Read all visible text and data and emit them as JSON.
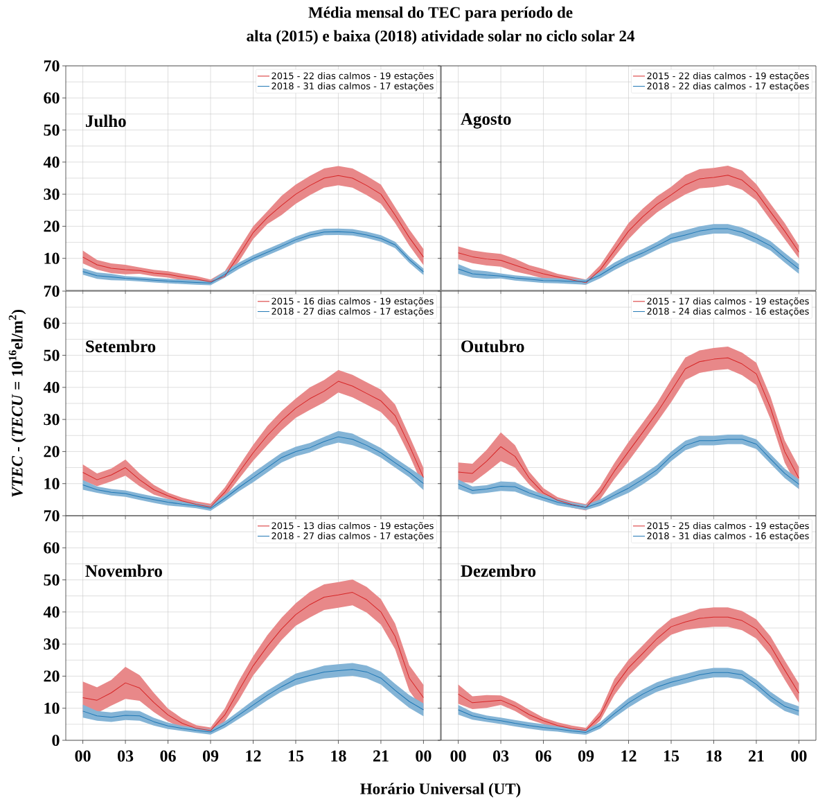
{
  "chart_data": [
    {
      "type": "line",
      "title": "Média mensal do TEC para período de",
      "subtitle": "alta (2015) e baixa (2018) atividade solar no ciclo solar 24",
      "x": [
        0,
        1,
        2,
        3,
        4,
        5,
        6,
        7,
        8,
        9,
        10,
        11,
        12,
        13,
        14,
        15,
        16,
        17,
        18,
        19,
        20,
        21,
        22,
        23,
        24
      ],
      "xlim": [
        -1.2,
        25.2
      ],
      "xticks": [
        0,
        3,
        6,
        9,
        12,
        15,
        18,
        21,
        24
      ],
      "ylim": [
        0,
        70
      ],
      "yticks": [
        10,
        20,
        30,
        40,
        50,
        60,
        70
      ],
      "tick_labels": "y",
      "grid": true,
      "legend": "top right",
      "annotations": [
        "Julho"
      ],
      "series": [
        {
          "name": "2015 - 22 dias calmos - 19 estações",
          "color": "#d62728",
          "values": [
            10.4,
            8,
            6.9,
            6.5,
            6.2,
            5.4,
            5,
            4.2,
            3.5,
            2.7,
            4.4,
            11,
            18,
            22.7,
            26.5,
            30,
            32.7,
            35,
            35.8,
            35,
            32.7,
            30,
            23.5,
            16.5,
            10.4
          ],
          "lower": [
            8.4,
            6.5,
            5.4,
            5,
            5.2,
            4.4,
            4,
            3.2,
            2.5,
            2,
            4,
            9,
            16,
            20.7,
            23.5,
            27,
            29.7,
            32,
            32.8,
            32,
            29.7,
            27,
            21,
            14,
            7.9
          ],
          "upper": [
            12.4,
            9.5,
            8.4,
            8,
            7.2,
            6.4,
            6,
            5.2,
            4.5,
            3.4,
            6,
            13,
            20,
            24.7,
            29.5,
            33,
            35.7,
            38,
            38.8,
            38,
            35.7,
            33,
            26,
            19,
            12.9
          ]
        },
        {
          "name": "2018 - 31 dias calmos - 17 estações",
          "color": "#1f77b4",
          "values": [
            5.9,
            4.6,
            4.2,
            3.8,
            3.5,
            3.2,
            2.9,
            2.7,
            2.5,
            2.3,
            5,
            7.7,
            10,
            11.9,
            13.8,
            15.8,
            17.3,
            18.2,
            18.3,
            18.1,
            17.3,
            16.2,
            14.2,
            9.6,
            5.8
          ],
          "lower": [
            4.9,
            3.6,
            3.2,
            3.1,
            2.8,
            2.5,
            2.2,
            2,
            1.8,
            1.6,
            4,
            6.7,
            9,
            10.9,
            12.8,
            14.8,
            16.3,
            17.2,
            17.3,
            17.1,
            16.3,
            15.2,
            13.2,
            8.6,
            4.8
          ],
          "upper": [
            6.9,
            5.6,
            5.2,
            4.5,
            4.2,
            3.9,
            3.6,
            3.4,
            3.2,
            3,
            6,
            8.7,
            11,
            12.9,
            14.8,
            16.8,
            18.3,
            19.2,
            19.3,
            19.1,
            18.3,
            17.2,
            15.2,
            10.6,
            6.8
          ]
        }
      ]
    },
    {
      "type": "line",
      "x": [
        0,
        1,
        2,
        3,
        4,
        5,
        6,
        7,
        8,
        9,
        10,
        11,
        12,
        13,
        14,
        15,
        16,
        17,
        18,
        19,
        20,
        21,
        22,
        23,
        24
      ],
      "xlim": [
        -1.2,
        25.2
      ],
      "xticks": [
        0,
        3,
        6,
        9,
        12,
        15,
        18,
        21,
        24
      ],
      "ylim": [
        0,
        70
      ],
      "yticks": [
        10,
        20,
        30,
        40,
        50,
        60,
        70
      ],
      "tick_labels": false,
      "grid": true,
      "legend": "top right",
      "annotations": [
        "Agosto"
      ],
      "series": [
        {
          "name": "2015 - 22 dias calmos - 19 estações",
          "color": "#d62728",
          "values": [
            11.7,
            10.5,
            9.8,
            9.4,
            7.9,
            6.4,
            5.2,
            4.2,
            3.3,
            2.4,
            6.4,
            12.4,
            18.5,
            23,
            26.8,
            29.8,
            32.9,
            34.8,
            35.2,
            35.9,
            34.4,
            30.6,
            24.5,
            18.5,
            12
          ],
          "lower": [
            9.7,
            8.5,
            7.8,
            7.4,
            5.9,
            4.9,
            3.7,
            3.2,
            2.3,
            1.8,
            4.9,
            10.4,
            16,
            20.5,
            24.3,
            27.3,
            29.9,
            31.8,
            32.2,
            32.9,
            31.4,
            28.1,
            22,
            16,
            10
          ],
          "upper": [
            13.7,
            12.5,
            11.8,
            11.4,
            9.9,
            7.9,
            6.7,
            5.2,
            4.3,
            3.4,
            7.9,
            14.4,
            21,
            25.5,
            29.3,
            32.3,
            35.9,
            37.8,
            38.2,
            38.9,
            37.4,
            33.1,
            27,
            21,
            14
          ]
        },
        {
          "name": "2018 - 22 dias calmos - 17 estações",
          "color": "#1f77b4",
          "values": [
            6.7,
            5.2,
            4.8,
            4.5,
            3.9,
            3.5,
            3.1,
            3,
            2.8,
            2.8,
            4.8,
            7.5,
            9.8,
            11.7,
            13.9,
            16.2,
            17.3,
            18.5,
            19.2,
            19.2,
            18.1,
            16.2,
            13.9,
            10.2,
            6.7
          ],
          "lower": [
            5.2,
            4,
            3.6,
            3.7,
            3.1,
            2.7,
            2.3,
            2.2,
            2,
            1.8,
            3.8,
            6.3,
            8.6,
            10.5,
            12.7,
            14.7,
            15.8,
            17,
            17.7,
            17.7,
            16.6,
            14.7,
            12.4,
            8.7,
            5.2
          ],
          "upper": [
            8.2,
            6.4,
            6,
            5.3,
            4.7,
            4.3,
            3.9,
            3.8,
            3.6,
            3.4,
            5.8,
            8.7,
            11,
            12.9,
            15.1,
            17.7,
            18.8,
            20,
            20.7,
            20.7,
            19.6,
            17.7,
            15.4,
            11.7,
            8.2
          ]
        }
      ]
    },
    {
      "type": "line",
      "ylabel": "*VTEC* - (*TECU* = 10$^{16}$el/m$^{2}$)",
      "x": [
        0,
        1,
        2,
        3,
        4,
        5,
        6,
        7,
        8,
        9,
        10,
        11,
        12,
        13,
        14,
        15,
        16,
        17,
        18,
        19,
        20,
        21,
        22,
        23,
        24
      ],
      "xlim": [
        -1.2,
        25.2
      ],
      "xticks": [
        0,
        3,
        6,
        9,
        12,
        15,
        18,
        21,
        24
      ],
      "ylim": [
        0,
        70
      ],
      "yticks": [
        10,
        20,
        30,
        40,
        50,
        60,
        70
      ],
      "tick_labels": "y",
      "grid": true,
      "legend": "top right",
      "annotations": [
        "Setembro"
      ],
      "series": [
        {
          "name": "2015 - 16 dias calmos - 19 estações",
          "color": "#d62728",
          "values": [
            13.5,
            11.2,
            12.7,
            15,
            11.2,
            8.1,
            6.2,
            4.6,
            3.5,
            2.7,
            7.3,
            13.5,
            19.6,
            25,
            29.6,
            33.5,
            36.5,
            38.8,
            41.9,
            40.4,
            38.1,
            35.8,
            31.2,
            21.9,
            11.9
          ],
          "lower": [
            11,
            9.2,
            10.7,
            12.5,
            9.2,
            6.6,
            5.2,
            3.6,
            2.5,
            1.7,
            5.8,
            11.5,
            17.1,
            22,
            26.6,
            30.5,
            33,
            35.3,
            38.4,
            36.9,
            34.6,
            32.3,
            27.7,
            18.9,
            8.9
          ],
          "upper": [
            16,
            13.2,
            14.7,
            17.5,
            13.2,
            9.6,
            7.2,
            5.6,
            4.5,
            3.7,
            8.8,
            15.5,
            22.1,
            28,
            32.6,
            36.5,
            40,
            42.3,
            45.4,
            43.9,
            41.6,
            39.3,
            34.7,
            24.9,
            14.9
          ]
        },
        {
          "name": "2018 - 27 dias calmos - 17 estações",
          "color": "#1f77b4",
          "values": [
            9.6,
            8.1,
            7.3,
            6.9,
            5.9,
            5,
            4.2,
            3.6,
            3.1,
            2.3,
            5.4,
            8.8,
            11.9,
            15,
            18.1,
            20,
            21.2,
            23.1,
            24.6,
            23.8,
            21.9,
            19.6,
            16.5,
            13.5,
            10
          ],
          "lower": [
            8.1,
            7.1,
            6.3,
            5.9,
            4.9,
            4,
            3.2,
            2.8,
            2.3,
            1.5,
            4.4,
            7.6,
            10.4,
            13.5,
            16.6,
            18.5,
            19.7,
            21.6,
            22.8,
            22,
            20.4,
            18.1,
            15,
            12,
            8
          ],
          "upper": [
            11.1,
            9.1,
            8.3,
            7.9,
            6.9,
            6,
            5.2,
            4.4,
            3.9,
            3.1,
            6.4,
            10,
            13.4,
            16.5,
            19.6,
            21.5,
            22.7,
            24.6,
            26.4,
            25.6,
            23.4,
            21.1,
            18,
            15,
            12
          ]
        }
      ]
    },
    {
      "type": "line",
      "x": [
        0,
        1,
        2,
        3,
        4,
        5,
        6,
        7,
        8,
        9,
        10,
        11,
        12,
        13,
        14,
        15,
        16,
        17,
        18,
        19,
        20,
        21,
        22,
        23,
        24
      ],
      "xlim": [
        -1.2,
        25.2
      ],
      "xticks": [
        0,
        3,
        6,
        9,
        12,
        15,
        18,
        21,
        24
      ],
      "ylim": [
        0,
        70
      ],
      "yticks": [
        10,
        20,
        30,
        40,
        50,
        60,
        70
      ],
      "tick_labels": false,
      "grid": true,
      "legend": "top right",
      "annotations": [
        "Outubro"
      ],
      "series": [
        {
          "name": "2015 - 17 dias calmos - 19 estações",
          "color": "#d62728",
          "values": [
            13.6,
            13.2,
            17,
            21.5,
            18.5,
            11.7,
            7.1,
            4.8,
            3.5,
            2.6,
            7.1,
            13.9,
            20,
            26,
            32.1,
            38.9,
            45.8,
            48,
            48.8,
            49.2,
            47.3,
            44.2,
            33.6,
            20,
            11.7
          ],
          "lower": [
            10.6,
            10.2,
            13.5,
            17,
            15,
            9.7,
            5.6,
            3.8,
            2.5,
            1.6,
            5.1,
            11.4,
            17,
            23,
            29.1,
            35.4,
            42.3,
            44.5,
            45.3,
            45.7,
            43.8,
            40.7,
            30.1,
            16.5,
            8.2
          ],
          "upper": [
            16.6,
            16.2,
            20.5,
            26,
            22,
            13.7,
            8.6,
            5.8,
            4.5,
            3.6,
            9.1,
            16.4,
            23,
            29,
            35.1,
            42.4,
            49.3,
            51.5,
            52.3,
            52.7,
            50.8,
            47.7,
            37.1,
            23.5,
            15.2
          ]
        },
        {
          "name": "2018 - 24 dias calmos - 16 estações",
          "color": "#1f77b4",
          "values": [
            9.8,
            7.9,
            8.3,
            9.2,
            9,
            7.1,
            5.6,
            4.2,
            3.3,
            2.6,
            4.1,
            6.4,
            8.6,
            11.3,
            14.3,
            18.5,
            21.9,
            23.4,
            23.4,
            23.8,
            23.8,
            22.3,
            17.7,
            13.2,
            9.8
          ],
          "lower": [
            8.3,
            6.7,
            7.1,
            7.7,
            7.5,
            5.9,
            4.6,
            3.2,
            2.5,
            1.8,
            3.1,
            5.2,
            7.1,
            9.8,
            12.8,
            17,
            20.4,
            21.9,
            21.9,
            22.3,
            22.3,
            20.8,
            16.2,
            11.7,
            8.3
          ],
          "upper": [
            11.3,
            9.1,
            9.5,
            10.7,
            10.5,
            8.3,
            6.6,
            5.2,
            4.1,
            3.4,
            5.1,
            7.6,
            10.1,
            12.8,
            15.8,
            20,
            23.4,
            24.9,
            24.9,
            25.3,
            25.3,
            23.8,
            19.2,
            14.7,
            11.3
          ]
        }
      ]
    },
    {
      "type": "line",
      "xlabel": "Horário Universal (UT)",
      "x": [
        0,
        1,
        2,
        3,
        4,
        5,
        6,
        7,
        8,
        9,
        10,
        11,
        12,
        13,
        14,
        15,
        16,
        17,
        18,
        19,
        20,
        21,
        22,
        23,
        24
      ],
      "xlim": [
        -1.2,
        25.2
      ],
      "xticks": [
        {
          "value": 0,
          "label": "00"
        },
        {
          "value": 3,
          "label": "03"
        },
        {
          "value": 6,
          "label": "06"
        },
        {
          "value": 9,
          "label": "09"
        },
        12,
        15,
        18,
        21,
        {
          "value": 24,
          "label": "00"
        }
      ],
      "ylim": [
        0,
        70
      ],
      "yticks": [
        0,
        10,
        20,
        30,
        40,
        50,
        60,
        70
      ],
      "grid": true,
      "legend": "top right",
      "annotations": [
        "Novembro"
      ],
      "series": [
        {
          "name": "2015 - 13 dias calmos - 19 estações",
          "color": "#d62728",
          "values": [
            13.3,
            12.5,
            14.8,
            17.9,
            16.3,
            11.8,
            7.9,
            5.3,
            3.7,
            3,
            7.9,
            15.6,
            23.2,
            29.3,
            34.7,
            39.2,
            42.3,
            44.6,
            45.3,
            46.1,
            43.8,
            40,
            32.4,
            19.4,
            13.3
          ],
          "lower": [
            8.3,
            8.5,
            10.8,
            12.9,
            12.3,
            8.8,
            5.9,
            3.8,
            2.7,
            2,
            5.9,
            12.6,
            20.2,
            25.8,
            31.2,
            35.7,
            38.3,
            40.6,
            41.3,
            42.1,
            39.8,
            36,
            28.4,
            15.4,
            9.3
          ],
          "upper": [
            18.3,
            16.5,
            18.8,
            22.9,
            20.3,
            14.8,
            9.9,
            6.8,
            4.7,
            4,
            9.9,
            18.6,
            26.2,
            32.8,
            38.2,
            42.7,
            46.3,
            48.6,
            49.3,
            50.1,
            47.8,
            44,
            36.4,
            23.4,
            17.3
          ]
        },
        {
          "name": "2018 - 27 dias calmos - 17 estações",
          "color": "#1f77b4",
          "values": [
            9.1,
            7.6,
            7.2,
            7.8,
            7.6,
            5.8,
            4.5,
            3.7,
            3.1,
            2.6,
            4.9,
            7.9,
            11,
            14,
            16.7,
            19,
            20.2,
            21.3,
            21.7,
            22.1,
            21.3,
            19.4,
            15.6,
            12.1,
            9.5
          ],
          "lower": [
            7.1,
            6.1,
            5.7,
            6.3,
            6.1,
            4.6,
            3.5,
            2.9,
            2.3,
            1.8,
            3.9,
            6.7,
            9.5,
            12.5,
            15.2,
            17.2,
            18.4,
            19.3,
            19.7,
            20.1,
            19.3,
            17.4,
            13.6,
            10.1,
            7.5
          ],
          "upper": [
            11.1,
            9.1,
            8.7,
            9.3,
            9.1,
            7,
            5.5,
            4.5,
            3.9,
            3.4,
            5.9,
            9.1,
            12.5,
            15.5,
            18.2,
            20.8,
            22,
            23.3,
            23.7,
            24.1,
            23.3,
            21.4,
            17.6,
            14.1,
            11.5
          ]
        }
      ]
    },
    {
      "type": "line",
      "x": [
        0,
        1,
        2,
        3,
        4,
        5,
        6,
        7,
        8,
        9,
        10,
        11,
        12,
        13,
        14,
        15,
        16,
        17,
        18,
        19,
        20,
        21,
        22,
        23,
        24
      ],
      "xlim": [
        -1.2,
        25.2
      ],
      "xticks": [
        {
          "value": 0,
          "label": "00"
        },
        {
          "value": 3,
          "label": "03"
        },
        {
          "value": 6,
          "label": "06"
        },
        {
          "value": 9,
          "label": "09"
        },
        12,
        15,
        18,
        21,
        {
          "value": 24,
          "label": "00"
        }
      ],
      "ylim": [
        0,
        70
      ],
      "yticks": [
        0,
        10,
        20,
        30,
        40,
        50,
        60,
        70
      ],
      "tick_labels": "x",
      "grid": true,
      "legend": "top right",
      "annotations": [
        "Dezembro"
      ],
      "series": [
        {
          "name": "2015 - 25 dias calmos - 19 estações",
          "color": "#d62728",
          "values": [
            14.4,
            11.7,
            12.1,
            12.5,
            10.6,
            8,
            6.1,
            4.6,
            3.6,
            3.1,
            7.6,
            16.6,
            22.6,
            27.1,
            31.7,
            35.4,
            36.9,
            38,
            38.4,
            38.4,
            37.3,
            34.7,
            29.4,
            21.9,
            14.7
          ],
          "lower": [
            11.4,
            9.7,
            10.1,
            11,
            9.1,
            6.5,
            5.1,
            3.6,
            2.6,
            2.3,
            6.1,
            14.1,
            20.1,
            24.6,
            29.2,
            32.9,
            34.4,
            35,
            35.4,
            35.4,
            34.3,
            31.7,
            26.4,
            18.9,
            11.7
          ],
          "upper": [
            17.4,
            13.7,
            14.1,
            14,
            12.1,
            9.5,
            7.1,
            5.6,
            4.6,
            3.9,
            9.1,
            19.1,
            25.1,
            29.6,
            34.2,
            37.9,
            39.4,
            41,
            41.4,
            41.4,
            40.3,
            37.7,
            32.4,
            24.9,
            17.7
          ]
        },
        {
          "name": "2018 - 31 dias calmos - 16 estações",
          "color": "#1f77b4",
          "values": [
            9.5,
            7.6,
            6.7,
            6.1,
            5.3,
            4.6,
            4,
            3.5,
            2.9,
            2.5,
            4.6,
            8.3,
            11.7,
            14.4,
            16.6,
            18.1,
            19.2,
            20.4,
            21.1,
            21.1,
            20.4,
            17.4,
            13.6,
            10.6,
            9.1
          ],
          "lower": [
            8,
            6.4,
            5.7,
            5.1,
            4.3,
            3.6,
            3,
            2.7,
            2.1,
            1.7,
            3.6,
            7.1,
            10.2,
            12.9,
            15.1,
            16.6,
            17.7,
            18.9,
            19.6,
            19.6,
            18.9,
            15.9,
            12.1,
            9.1,
            7.6
          ],
          "upper": [
            11,
            8.8,
            7.7,
            7.1,
            6.3,
            5.6,
            5,
            4.3,
            3.7,
            3.3,
            5.6,
            9.5,
            13.2,
            15.9,
            18.1,
            19.6,
            20.7,
            21.9,
            22.6,
            22.6,
            21.9,
            18.9,
            15.1,
            12.1,
            10.6
          ]
        }
      ]
    }
  ]
}
